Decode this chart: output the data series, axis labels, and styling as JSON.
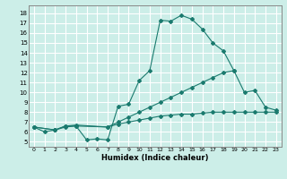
{
  "xlabel": "Humidex (Indice chaleur)",
  "bg_color": "#cceee8",
  "grid_color": "#ffffff",
  "line_color": "#1a7a6e",
  "xlim": [
    -0.5,
    23.5
  ],
  "ylim": [
    4.5,
    18.8
  ],
  "xticks": [
    0,
    1,
    2,
    3,
    4,
    5,
    6,
    7,
    8,
    9,
    10,
    11,
    12,
    13,
    14,
    15,
    16,
    17,
    18,
    19,
    20,
    21,
    22,
    23
  ],
  "yticks": [
    5,
    6,
    7,
    8,
    9,
    10,
    11,
    12,
    13,
    14,
    15,
    16,
    17,
    18
  ],
  "line1_x": [
    0,
    1,
    2,
    3,
    4,
    5,
    6,
    7,
    8,
    9,
    10,
    11,
    12,
    13,
    14,
    15,
    16,
    17,
    18,
    19
  ],
  "line1_y": [
    6.5,
    6.0,
    6.2,
    6.5,
    6.6,
    5.2,
    5.3,
    5.2,
    8.6,
    8.8,
    11.2,
    12.2,
    17.3,
    17.2,
    17.8,
    17.4,
    16.4,
    15.0,
    14.2,
    12.2
  ],
  "line2_x": [
    0,
    2,
    3,
    4,
    7,
    8,
    9,
    10,
    11,
    12,
    13,
    14,
    15,
    16,
    17,
    18,
    19,
    20,
    21,
    22,
    23
  ],
  "line2_y": [
    6.5,
    6.2,
    6.6,
    6.6,
    6.5,
    7.0,
    7.5,
    8.0,
    8.5,
    9.0,
    9.5,
    10.0,
    10.5,
    11.0,
    11.5,
    12.0,
    12.2,
    10.0,
    10.2,
    8.5,
    8.2
  ],
  "line3_x": [
    0,
    2,
    3,
    4,
    7,
    8,
    9,
    10,
    11,
    12,
    13,
    14,
    15,
    16,
    17,
    18,
    19,
    20,
    21,
    22,
    23
  ],
  "line3_y": [
    6.5,
    6.2,
    6.6,
    6.7,
    6.5,
    6.8,
    7.0,
    7.2,
    7.4,
    7.6,
    7.7,
    7.8,
    7.8,
    7.9,
    8.0,
    8.0,
    8.0,
    8.0,
    8.0,
    8.0,
    8.0
  ]
}
